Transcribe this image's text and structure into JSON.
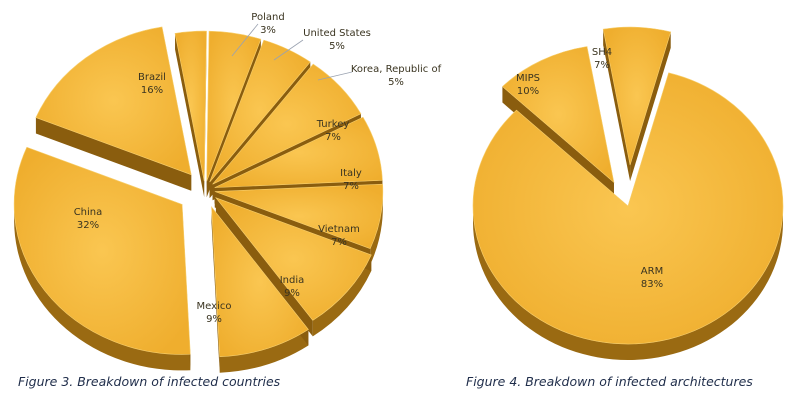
{
  "chart_data": [
    {
      "type": "pie",
      "title": "Figure 3. Breakdown of infected countries",
      "slices": [
        {
          "label": "Poland",
          "value": 3,
          "display": "3%"
        },
        {
          "label": "United States",
          "value": 5,
          "display": "5%"
        },
        {
          "label": "Korea, Republic of",
          "value": 5,
          "display": "5%"
        },
        {
          "label": "Turkey",
          "value": 7,
          "display": "7%"
        },
        {
          "label": "Italy",
          "value": 7,
          "display": "7%"
        },
        {
          "label": "Vietnam",
          "value": 7,
          "display": "7%"
        },
        {
          "label": "India",
          "value": 9,
          "display": "9%"
        },
        {
          "label": "Mexico",
          "value": 9,
          "display": "9%"
        },
        {
          "label": "China",
          "value": 32,
          "display": "32%"
        },
        {
          "label": "Brazil",
          "value": 16,
          "display": "16%"
        }
      ],
      "style": "3d-exploded",
      "legend": "none"
    },
    {
      "type": "pie",
      "title": "Figure 4. Breakdown of infected architectures",
      "slices": [
        {
          "label": "SH4",
          "value": 7,
          "display": "7%"
        },
        {
          "label": "ARM",
          "value": 83,
          "display": "83%"
        },
        {
          "label": "MIPS",
          "value": 10,
          "display": "10%"
        }
      ],
      "style": "3d-exploded",
      "legend": "none"
    }
  ],
  "colors": {
    "slice_top": "#F5B93C",
    "slice_side": "#9A6A12",
    "label_text": "#3a3420",
    "caption_text": "#1f2d4a"
  }
}
